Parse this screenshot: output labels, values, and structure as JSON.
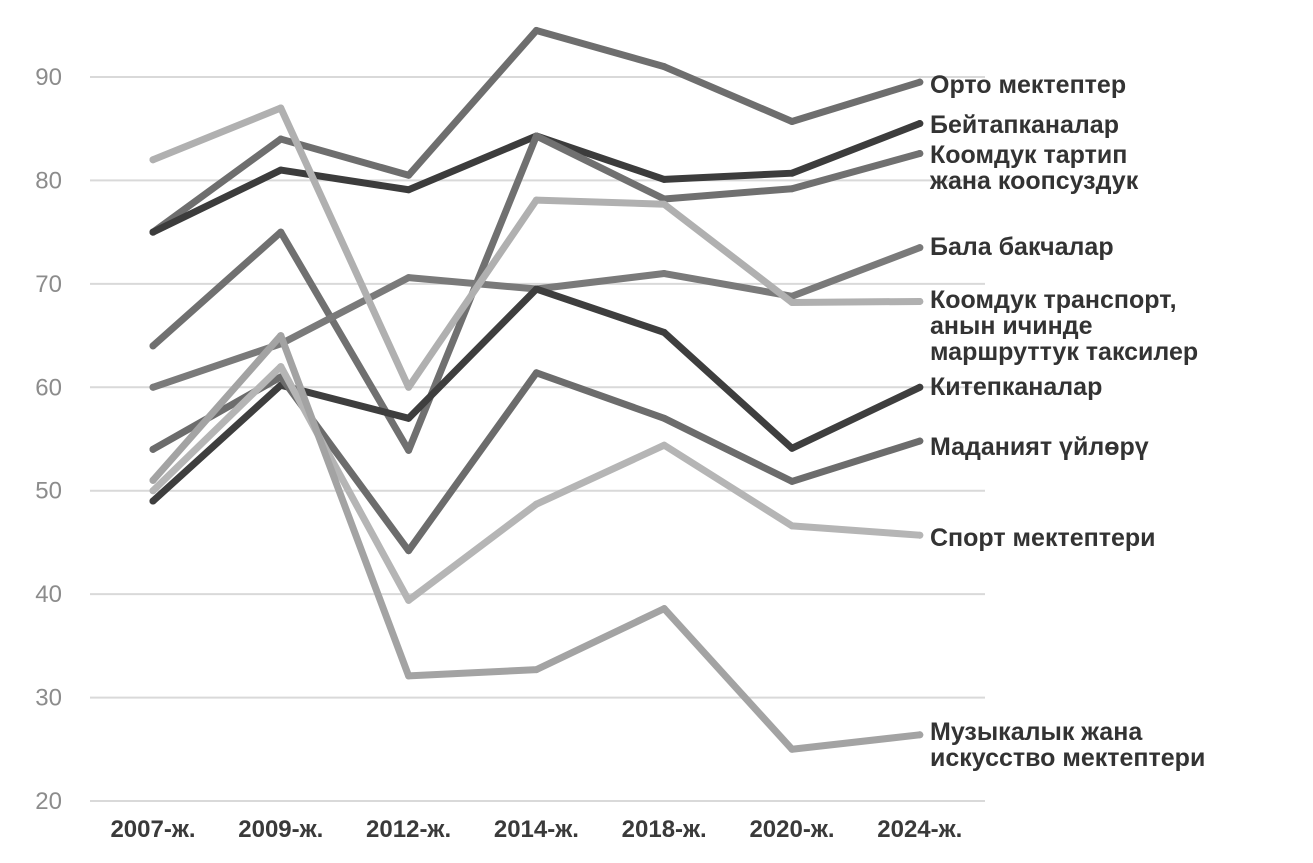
{
  "chart_data": {
    "type": "line",
    "title": "",
    "xlabel": "",
    "ylabel": "",
    "categories": [
      "2007-ж.",
      "2009-ж.",
      "2012-ж.",
      "2014-ж.",
      "2018-ж.",
      "2020-ж.",
      "2024-ж."
    ],
    "ylim": [
      20,
      95
    ],
    "yticks": [
      "20",
      "30",
      "40",
      "50",
      "60",
      "70",
      "80",
      "90"
    ],
    "grid": true,
    "legend": "labels at right end of each line",
    "series": [
      {
        "name": "Орто мектептер",
        "name_lines": [
          "Орто мектептер"
        ],
        "color": "#6e6e6e",
        "values": [
          75,
          84,
          80.5,
          94.5,
          91,
          85.7,
          89.5
        ]
      },
      {
        "name": "Бейтапканалар",
        "name_lines": [
          "Бейтапканалар"
        ],
        "color": "#3c3c3c",
        "values": [
          75,
          81,
          79.1,
          84.3,
          80.1,
          80.7,
          85.5
        ]
      },
      {
        "name": "Коомдук тартип жана коопсуздук",
        "name_lines": [
          "Коомдук тартип",
          "жана коопсуздук"
        ],
        "color": "#707070",
        "values": [
          64,
          75,
          53.9,
          84.3,
          78.2,
          79.2,
          82.6
        ]
      },
      {
        "name": "Бала бакчалар",
        "name_lines": [
          "Бала бакчалар"
        ],
        "color": "#7a7a7a",
        "values": [
          60,
          64.2,
          70.6,
          69.5,
          71,
          68.8,
          73.5
        ]
      },
      {
        "name": "Коомдук транспорт, анын ичинде маршруттук таксилер",
        "name_lines": [
          "Коомдук транспорт,",
          "анын ичинде",
          "маршруттук таксилер"
        ],
        "color": "#b0b0b0",
        "values": [
          82,
          87,
          60,
          78.1,
          77.7,
          68.2,
          68.3
        ]
      },
      {
        "name": "Китепканалар",
        "name_lines": [
          "Китепканалар"
        ],
        "color": "#3e3e3e",
        "values": [
          49,
          60.2,
          57,
          69.5,
          65.3,
          54.1,
          60
        ]
      },
      {
        "name": "Маданият үйлөрү",
        "name_lines": [
          "Маданият үйлөрү"
        ],
        "color": "#6c6c6c",
        "values": [
          54,
          61,
          44.2,
          61.4,
          57,
          50.9,
          54.8
        ]
      },
      {
        "name": "Спорт мектептери",
        "name_lines": [
          "Спорт мектептери"
        ],
        "color": "#b5b5b5",
        "values": [
          50,
          62,
          39.4,
          48.7,
          54.4,
          46.6,
          45.7
        ]
      },
      {
        "name": "Музыкалык жана искусство мектептери",
        "name_lines": [
          "Музыкалык жана",
          "искусство мектептери"
        ],
        "color": "#a3a3a3",
        "values": [
          51,
          65,
          32.1,
          32.7,
          38.6,
          25,
          26.4
        ]
      }
    ]
  }
}
